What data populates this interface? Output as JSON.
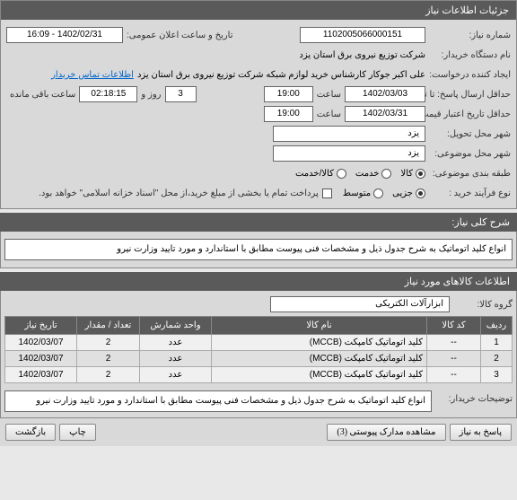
{
  "header": {
    "title": "جزئیات اطلاعات نیاز"
  },
  "fields": {
    "requestNumber_label": "شماره نیاز:",
    "requestNumber": "1102005066000151",
    "announceDate_label": "تاریخ و ساعت اعلان عمومی:",
    "announceDate": "1402/02/31 - 16:09",
    "buyerOrg_label": "نام دستگاه خریدار:",
    "buyerOrg": "شرکت توزیع نیروی برق استان یزد",
    "requester_label": "ایجاد کننده درخواست:",
    "requester": "علی اکبر جوکار  کارشناس خرید لوازم شبکه  شرکت توزیع نیروی برق استان یزد",
    "contactLink": "اطلاعات تماس خریدار",
    "deadline_label": "حداقل ارسال پاسخ: تا تاریخ:",
    "deadline_date": "1402/03/03",
    "deadline_time_label": "ساعت",
    "deadline_time": "19:00",
    "days_label": "روز و",
    "days": "3",
    "remaining_time": "02:18:15",
    "remaining_label": "ساعت باقی مانده",
    "validity_label": "حداقل تاریخ اعتبار قیمت: تا تاریخ:",
    "validity_date": "1402/03/31",
    "validity_time_label": "ساعت",
    "validity_time": "19:00",
    "deliveryCity_label": "شهر محل تحویل:",
    "deliveryCity": "یزد",
    "subjectCity_label": "شهر محل موضوعی:",
    "subjectCity": "یزد",
    "category_label": "طبقه بندی موضوعی:",
    "cat_goods": "کالا/خدمت",
    "cat_service": "خدمت",
    "cat_product": "کالا",
    "process_label": "نوع فرآیند خرید :",
    "process_partial": "جزیی",
    "process_medium": "متوسط",
    "payment_note": "پرداخت تمام یا بخشی از مبلغ خرید،از محل \"اسناد خزانه اسلامی\" خواهد بود."
  },
  "mainDesc": {
    "title": "شرح کلی نیاز:",
    "text": "انواع کلید اتوماتیک  به شرح جدول ذیل و مشخصات فنی پیوست مطابق با استاندارد و مورد تایید وزارت نیرو"
  },
  "items": {
    "section_title": "اطلاعات کالاهای مورد نیاز",
    "group_label": "گروه کالا:",
    "group_value": "ابزارآلات الکتریکی",
    "columns": {
      "row": "ردیف",
      "code": "کد کالا",
      "name": "نام کالا",
      "unit": "واحد شمارش",
      "qty": "تعداد / مقدار",
      "date": "تاریخ نیاز"
    },
    "rows": [
      {
        "n": "1",
        "code": "--",
        "name": "کلید اتوماتیک کامپکت (MCCB)",
        "unit": "عدد",
        "qty": "2",
        "date": "1402/03/07"
      },
      {
        "n": "2",
        "code": "--",
        "name": "کلید اتوماتیک کامپکت (MCCB)",
        "unit": "عدد",
        "qty": "2",
        "date": "1402/03/07"
      },
      {
        "n": "3",
        "code": "--",
        "name": "کلید اتوماتیک کامپکت (MCCB)",
        "unit": "عدد",
        "qty": "2",
        "date": "1402/03/07"
      }
    ]
  },
  "buyerNotes": {
    "label": "توضیحات خریدار:",
    "text": "انواع کلید اتوماتیک  به شرح جدول ذیل و مشخصات فنی پیوست مطابق با استاندارد و مورد تایید وزارت نیرو"
  },
  "footer": {
    "respond": "پاسخ به نیاز",
    "attachments": "مشاهده مدارک پیوستی (3)",
    "print": "چاپ",
    "back": "بازگشت"
  }
}
